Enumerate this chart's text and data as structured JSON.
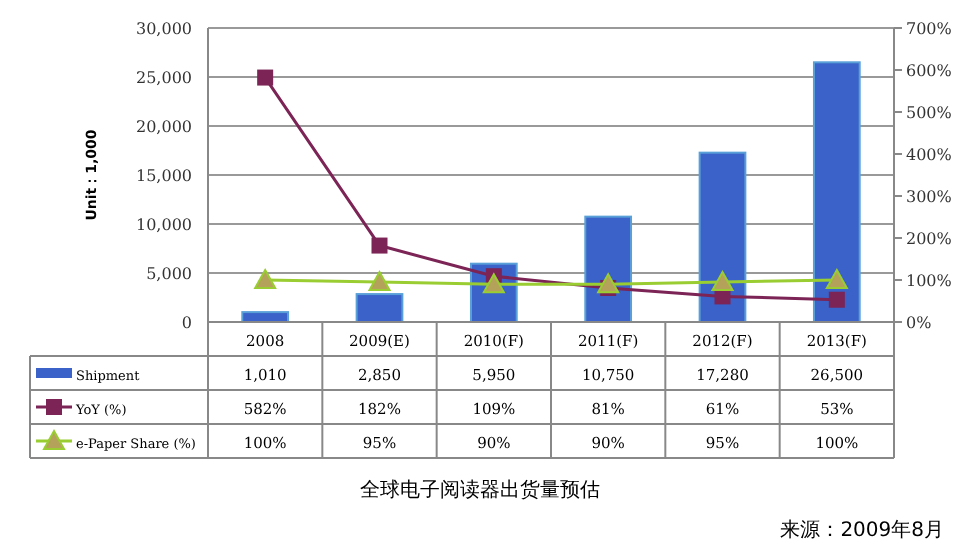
{
  "chart_data": {
    "type": "bar",
    "title": "全球电子阅读器出货量预估",
    "ylabel": "Unit：1,000",
    "annotations": [
      "来源：2009年8月"
    ],
    "categories": [
      "2008",
      "2009(E)",
      "2010(F)",
      "2011(F)",
      "2012(F)",
      "2013(F)"
    ],
    "series": [
      {
        "name": "Shipment",
        "color": "#3a62c8",
        "values": [
          1010,
          2850,
          5950,
          10750,
          17280,
          26500
        ],
        "value_labels": [
          "1,010",
          "2,850",
          "5,950",
          "10,750",
          "17,280",
          "26,500"
        ]
      },
      {
        "name": "YoY (%)",
        "type": "line",
        "axis": "y2",
        "marker": "square",
        "color": "#7b2455",
        "values": [
          582,
          182,
          109,
          81,
          61,
          53
        ],
        "value_labels": [
          "582%",
          "182%",
          "109%",
          "81%",
          "61%",
          "53%"
        ]
      },
      {
        "name": "e-Paper Share (%)",
        "type": "line",
        "axis": "y2",
        "marker": "triangle",
        "color": "#9acd32",
        "values": [
          100,
          95,
          90,
          90,
          95,
          100
        ],
        "value_labels": [
          "100%",
          "95%",
          "90%",
          "90%",
          "95%",
          "100%"
        ]
      }
    ],
    "ylim": [
      0,
      30000
    ],
    "yticks": [
      {
        "value": 0,
        "label": "0"
      },
      {
        "value": 5000,
        "label": "5,000"
      },
      {
        "value": 10000,
        "label": "10,000"
      },
      {
        "value": 15000,
        "label": "15,000"
      },
      {
        "value": 20000,
        "label": "20,000"
      },
      {
        "value": 25000,
        "label": "25,000"
      },
      {
        "value": 30000,
        "label": "30,000"
      }
    ],
    "y2lim": [
      0,
      700
    ],
    "y2ticks": [
      {
        "value": 0,
        "label": "0%"
      },
      {
        "value": 100,
        "label": "100%"
      },
      {
        "value": 200,
        "label": "200%"
      },
      {
        "value": 300,
        "label": "300%"
      },
      {
        "value": 400,
        "label": "400%"
      },
      {
        "value": 500,
        "label": "500%"
      },
      {
        "value": 600,
        "label": "600%"
      },
      {
        "value": 700,
        "label": "700%"
      }
    ],
    "grid": "y",
    "legend": "bottom"
  }
}
